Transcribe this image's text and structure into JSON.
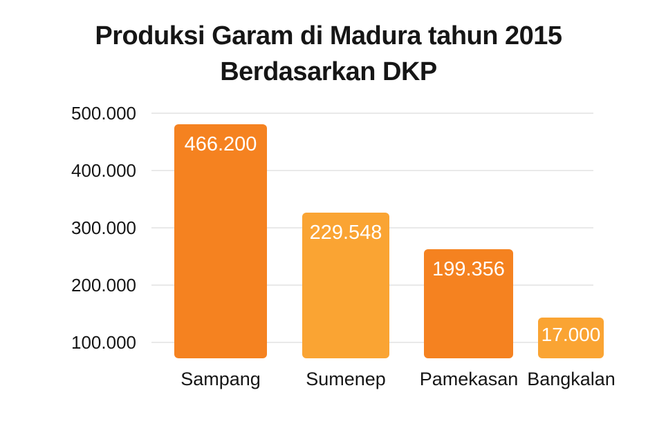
{
  "chart": {
    "title_line1": "Produksi Garam di Madura tahun 2015",
    "title_line2": "Berdasarkan DKP"
  },
  "colors": {
    "bar_dark": "#f58220",
    "bar_light": "#faa433",
    "gridline": "#e9e9e9",
    "text": "#161616",
    "value_label": "#ffffff",
    "background": "#ffffff"
  },
  "chart_data": {
    "type": "bar",
    "title": "Produksi Garam di Madura tahun 2015 Berdasarkan DKP",
    "xlabel": "",
    "ylabel": "",
    "legend": "none",
    "grid": "horizontal-only",
    "yticks": [
      {
        "label": "500.000",
        "value": 500000
      },
      {
        "label": "400.000",
        "value": 400000
      },
      {
        "label": "300.000",
        "value": 300000
      },
      {
        "label": "200.000",
        "value": 200000
      },
      {
        "label": "100.000",
        "value": 100000
      }
    ],
    "categories": [
      "Sampang",
      "Sumenep",
      "Pamekasan",
      "Bangkalan"
    ],
    "values": [
      466200,
      229548,
      199356,
      17000
    ],
    "value_labels": [
      "466.200",
      "229.548",
      "199.356",
      "17.000"
    ],
    "bars": [
      {
        "category": "Sampang",
        "value": 466200,
        "value_label": "466.200",
        "shade": "dark",
        "apparent_top_value": 481000
      },
      {
        "category": "Sumenep",
        "value": 229548,
        "value_label": "229.548",
        "shade": "light",
        "apparent_top_value": 327000
      },
      {
        "category": "Pamekasan",
        "value": 199356,
        "value_label": "199.356",
        "shade": "dark",
        "apparent_top_value": 261000
      },
      {
        "category": "Bangkalan",
        "value": 17000,
        "value_label": "17.000",
        "shade": "light",
        "apparent_top_value": 142000
      }
    ],
    "note": "Bar heights as drawn do not correspond to the labeled values; baseline is truncated (bars bottom out below the 100.000 gridline). apparent_top_value gives the value each bar top visually reaches against the axis."
  }
}
